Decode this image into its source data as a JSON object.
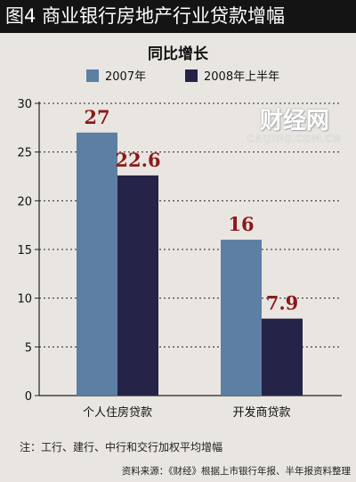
{
  "header": {
    "title": "图4  商业银行房地产行业贷款增幅"
  },
  "chart_data": {
    "type": "bar",
    "title": "同比增长",
    "categories": [
      "个人住房贷款",
      "开发商贷款"
    ],
    "series": [
      {
        "name": "2007年",
        "values": [
          27,
          16
        ]
      },
      {
        "name": "2008年上半年",
        "values": [
          22.6,
          7.9
        ]
      }
    ],
    "data_labels": [
      [
        "27",
        "22.6"
      ],
      [
        "16",
        "7.9"
      ]
    ],
    "ylim": [
      0,
      30
    ],
    "yticks": [
      0,
      5,
      10,
      15,
      20,
      25,
      30
    ],
    "grid": true,
    "legend_position": "top"
  },
  "colors": {
    "series_1": "#5c7fa3",
    "series_2": "#252348",
    "data_label": "#8b1a1a",
    "background": "#e9e6e2",
    "header_bg": "#141414"
  },
  "watermark": {
    "main": "财经网",
    "sub": "CAIJING.COM.CN"
  },
  "footnote": "注：工行、建行、中行和交行加权平均增幅",
  "source": "资料来源：《财经》根据上市银行年报、半年报资料整理"
}
